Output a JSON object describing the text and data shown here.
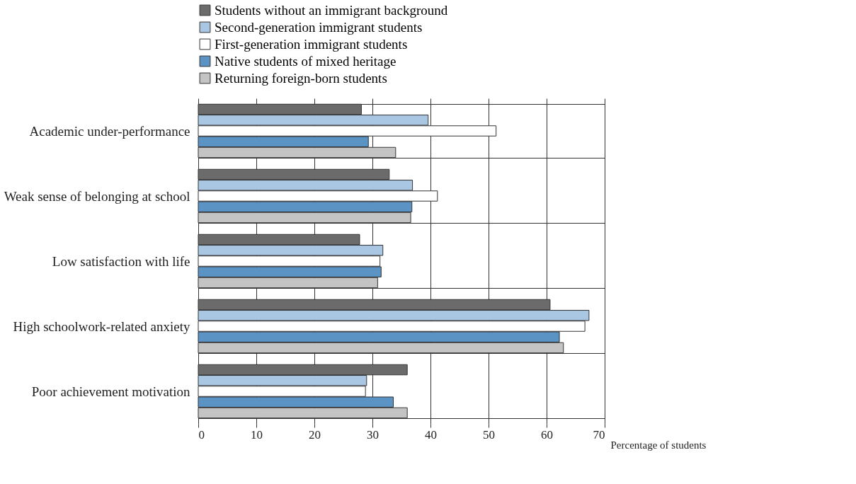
{
  "chart_data": {
    "type": "bar",
    "orientation": "horizontal",
    "xlabel": "Percentage of students",
    "categories": [
      "Academic under-performance",
      "Weak sense of belonging at school",
      "Low satisfaction with life",
      "High schoolwork-related anxiety",
      "Poor achievement motivation"
    ],
    "series": [
      {
        "name": "Students without an immigrant background",
        "color": "#6b6b6b",
        "values": [
          28.1,
          32.9,
          27.8,
          60.6,
          36.0
        ]
      },
      {
        "name": "Second-generation immigrant students",
        "color": "#a9c6e3",
        "values": [
          39.6,
          36.9,
          31.8,
          67.3,
          29.0
        ]
      },
      {
        "name": "First-generation immigrant students",
        "color": "#ffffff",
        "values": [
          51.3,
          41.2,
          31.3,
          66.6,
          28.8
        ]
      },
      {
        "name": "Native students of mixed heritage",
        "color": "#5b93c4",
        "values": [
          29.3,
          36.8,
          31.5,
          62.2,
          33.6
        ]
      },
      {
        "name": "Returning foreign-born students",
        "color": "#c4c4c4",
        "values": [
          34.0,
          36.6,
          30.9,
          62.9,
          36.0
        ]
      }
    ],
    "xlim": [
      0,
      70
    ],
    "xticks": [
      0,
      10,
      20,
      30,
      40,
      50,
      60,
      70
    ],
    "grid": true,
    "legend": "top"
  }
}
